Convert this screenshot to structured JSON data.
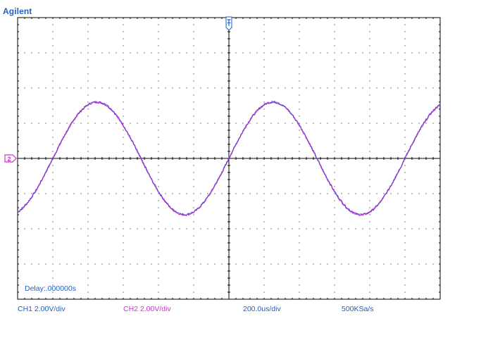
{
  "brand": "Agilent",
  "delay_label": "Delay:.000000s",
  "status_bar": {
    "ch1_label": "CH1 2.00V/div",
    "ch2_label": "CH2 2.00V/div",
    "timebase_label": "200.0us/div",
    "sample_rate_label": "500KSa/s"
  },
  "colors": {
    "brand": "#1f5fbf",
    "ch1": "#1f5fbf",
    "ch2": "#cc33cc",
    "trace_ch1": "#3333cc",
    "trace_ch2": "#cc33cc",
    "grid": "#000000",
    "trigger_marker": "#1f5fbf",
    "ground_marker": "#cc33cc"
  },
  "markers": {
    "ground_label": "2",
    "trigger_icon": "trigger-t-icon"
  },
  "chart_data": {
    "type": "line",
    "grid": true,
    "divisions": {
      "x": 12,
      "y": 8
    },
    "xlim": [
      -1200,
      1200
    ],
    "ylim": [
      -8,
      8
    ],
    "x_units": "us",
    "y_units": "V",
    "series": [
      {
        "color": "#cc33cc",
        "amplitude": 3.2,
        "period": 1000,
        "phase": 0,
        "offset": 0
      },
      {
        "color": "#3333cc",
        "amplitude": 3.2,
        "period": 1000,
        "phase": 0,
        "offset": 0
      }
    ]
  }
}
